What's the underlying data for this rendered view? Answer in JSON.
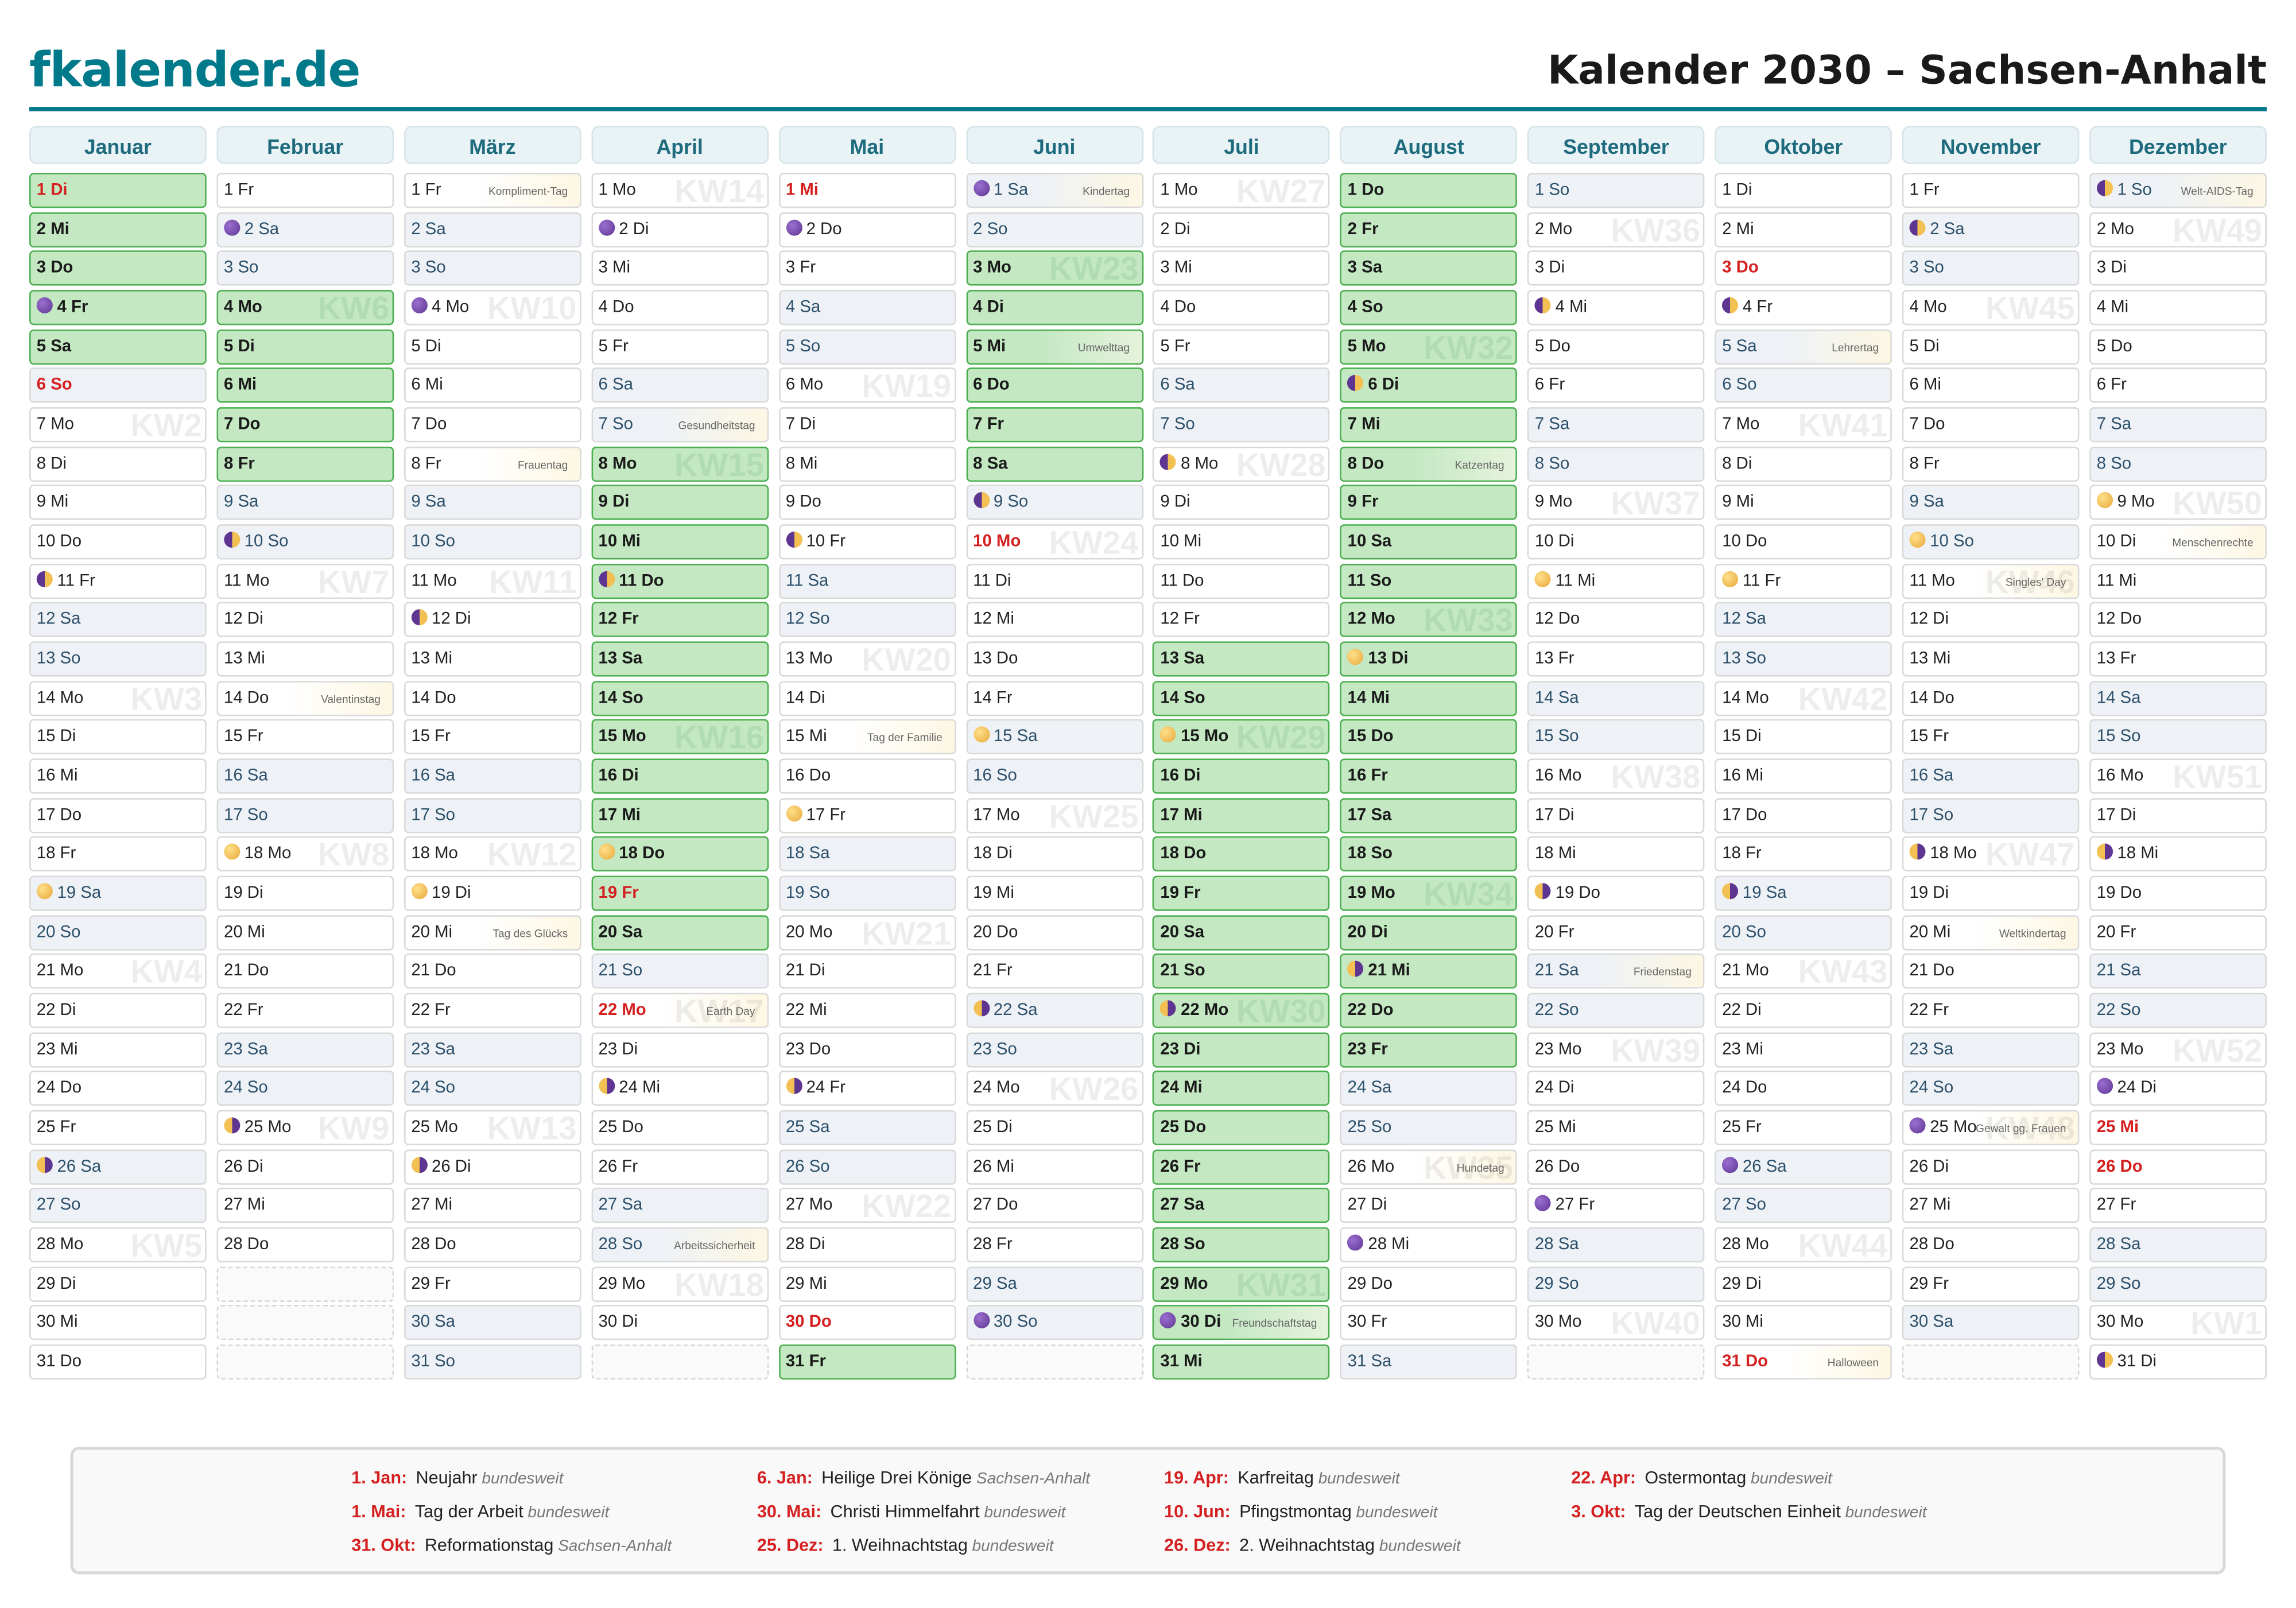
{
  "header": {
    "logo": "fkalender.de",
    "title": "Kalender 2030 – Sachsen-Anhalt"
  },
  "colors": {
    "brand": "#007a8a",
    "vacation": "#c3e8c2",
    "holiday": "#d42020",
    "weekend": "#eef2f6"
  },
  "months": [
    {
      "name": "Januar",
      "days": [
        "1 Di",
        "2 Mi",
        "3 Do",
        "4 Fr",
        "5 Sa",
        "6 So",
        "7 Mo",
        "8 Di",
        "9 Mi",
        "10 Do",
        "11 Fr",
        "12 Sa",
        "13 So",
        "14 Mo",
        "15 Di",
        "16 Mi",
        "17 Do",
        "18 Fr",
        "19 Sa",
        "20 So",
        "21 Mo",
        "22 Di",
        "23 Mi",
        "24 Do",
        "25 Fr",
        "26 Sa",
        "27 So",
        "28 Mo",
        "29 Di",
        "30 Mi",
        "31 Do"
      ],
      "vacation": [
        [
          1,
          5
        ]
      ],
      "holidays": [
        1,
        6
      ],
      "moons": {
        "4": "new",
        "11": "first",
        "19": "full",
        "26": "last"
      },
      "events": {},
      "kw": {
        "7": "KW2",
        "14": "KW3",
        "21": "KW4",
        "28": "KW5"
      }
    },
    {
      "name": "Februar",
      "days": [
        "1 Fr",
        "2 Sa",
        "3 So",
        "4 Mo",
        "5 Di",
        "6 Mi",
        "7 Do",
        "8 Fr",
        "9 Sa",
        "10 So",
        "11 Mo",
        "12 Di",
        "13 Mi",
        "14 Do",
        "15 Fr",
        "16 Sa",
        "17 So",
        "18 Mo",
        "19 Di",
        "20 Mi",
        "21 Do",
        "22 Fr",
        "23 Sa",
        "24 So",
        "25 Mo",
        "26 Di",
        "27 Mi",
        "28 Do"
      ],
      "vacation": [
        [
          4,
          8
        ]
      ],
      "holidays": [],
      "moons": {
        "2": "new",
        "10": "first",
        "18": "full",
        "25": "last"
      },
      "events": {
        "14": "Valentinstag"
      },
      "kw": {
        "4": "KW6",
        "11": "KW7",
        "18": "KW8",
        "25": "KW9"
      }
    },
    {
      "name": "März",
      "days": [
        "1 Fr",
        "2 Sa",
        "3 So",
        "4 Mo",
        "5 Di",
        "6 Mi",
        "7 Do",
        "8 Fr",
        "9 Sa",
        "10 So",
        "11 Mo",
        "12 Di",
        "13 Mi",
        "14 Do",
        "15 Fr",
        "16 Sa",
        "17 So",
        "18 Mo",
        "19 Di",
        "20 Mi",
        "21 Do",
        "22 Fr",
        "23 Sa",
        "24 So",
        "25 Mo",
        "26 Di",
        "27 Mi",
        "28 Do",
        "29 Fr",
        "30 Sa",
        "31 So"
      ],
      "vacation": [],
      "holidays": [],
      "moons": {
        "4": "new",
        "12": "first",
        "19": "full",
        "26": "last"
      },
      "events": {
        "1": "Kompliment-Tag",
        "8": "Frauentag",
        "20": "Tag des Glücks"
      },
      "kw": {
        "4": "KW10",
        "11": "KW11",
        "18": "KW12",
        "25": "KW13"
      }
    },
    {
      "name": "April",
      "days": [
        "1 Mo",
        "2 Di",
        "3 Mi",
        "4 Do",
        "5 Fr",
        "6 Sa",
        "7 So",
        "8 Mo",
        "9 Di",
        "10 Mi",
        "11 Do",
        "12 Fr",
        "13 Sa",
        "14 So",
        "15 Mo",
        "16 Di",
        "17 Mi",
        "18 Do",
        "19 Fr",
        "20 Sa",
        "21 So",
        "22 Mo",
        "23 Di",
        "24 Mi",
        "25 Do",
        "26 Fr",
        "27 Sa",
        "28 So",
        "29 Mo",
        "30 Di"
      ],
      "vacation": [
        [
          8,
          20
        ]
      ],
      "holidays": [
        19,
        22
      ],
      "moons": {
        "2": "new",
        "11": "first",
        "18": "full",
        "24": "last"
      },
      "events": {
        "7": "Gesundheitstag",
        "22": "Earth Day",
        "28": "Arbeitssicherheit"
      },
      "kw": {
        "1": "KW14",
        "8": "KW15",
        "15": "KW16",
        "22": "KW17",
        "29": "KW18"
      }
    },
    {
      "name": "Mai",
      "days": [
        "1 Mi",
        "2 Do",
        "3 Fr",
        "4 Sa",
        "5 So",
        "6 Mo",
        "7 Di",
        "8 Mi",
        "9 Do",
        "10 Fr",
        "11 Sa",
        "12 So",
        "13 Mo",
        "14 Di",
        "15 Mi",
        "16 Do",
        "17 Fr",
        "18 Sa",
        "19 So",
        "20 Mo",
        "21 Di",
        "22 Mi",
        "23 Do",
        "24 Fr",
        "25 Sa",
        "26 So",
        "27 Mo",
        "28 Di",
        "29 Mi",
        "30 Do",
        "31 Fr"
      ],
      "vacation": [
        [
          31,
          31
        ]
      ],
      "holidays": [
        1,
        30
      ],
      "moons": {
        "2": "new",
        "10": "first",
        "17": "full",
        "24": "last"
      },
      "events": {
        "15": "Tag der Familie"
      },
      "kw": {
        "6": "KW19",
        "13": "KW20",
        "20": "KW21",
        "27": "KW22"
      }
    },
    {
      "name": "Juni",
      "days": [
        "1 Sa",
        "2 So",
        "3 Mo",
        "4 Di",
        "5 Mi",
        "6 Do",
        "7 Fr",
        "8 Sa",
        "9 So",
        "10 Mo",
        "11 Di",
        "12 Mi",
        "13 Do",
        "14 Fr",
        "15 Sa",
        "16 So",
        "17 Mo",
        "18 Di",
        "19 Mi",
        "20 Do",
        "21 Fr",
        "22 Sa",
        "23 So",
        "24 Mo",
        "25 Di",
        "26 Mi",
        "27 Do",
        "28 Fr",
        "29 Sa",
        "30 So"
      ],
      "vacation": [
        [
          3,
          8
        ]
      ],
      "holidays": [
        10
      ],
      "moons": {
        "1": "new",
        "9": "first",
        "15": "full",
        "22": "last",
        "30": "new"
      },
      "events": {
        "1": "Kindertag",
        "5": "Umwelttag"
      },
      "kw": {
        "3": "KW23",
        "10": "KW24",
        "17": "KW25",
        "24": "KW26"
      }
    },
    {
      "name": "Juli",
      "days": [
        "1 Mo",
        "2 Di",
        "3 Mi",
        "4 Do",
        "5 Fr",
        "6 Sa",
        "7 So",
        "8 Mo",
        "9 Di",
        "10 Mi",
        "11 Do",
        "12 Fr",
        "13 Sa",
        "14 So",
        "15 Mo",
        "16 Di",
        "17 Mi",
        "18 Do",
        "19 Fr",
        "20 Sa",
        "21 So",
        "22 Mo",
        "23 Di",
        "24 Mi",
        "25 Do",
        "26 Fr",
        "27 Sa",
        "28 So",
        "29 Mo",
        "30 Di",
        "31 Mi"
      ],
      "vacation": [
        [
          13,
          31
        ]
      ],
      "holidays": [],
      "moons": {
        "8": "first",
        "15": "full",
        "22": "last",
        "30": "new"
      },
      "events": {
        "30": "Freundschaftstag"
      },
      "kw": {
        "1": "KW27",
        "8": "KW28",
        "15": "KW29",
        "22": "KW30",
        "29": "KW31"
      }
    },
    {
      "name": "August",
      "days": [
        "1 Do",
        "2 Fr",
        "3 Sa",
        "4 So",
        "5 Mo",
        "6 Di",
        "7 Mi",
        "8 Do",
        "9 Fr",
        "10 Sa",
        "11 So",
        "12 Mo",
        "13 Di",
        "14 Mi",
        "15 Do",
        "16 Fr",
        "17 Sa",
        "18 So",
        "19 Mo",
        "20 Di",
        "21 Mi",
        "22 Do",
        "23 Fr",
        "24 Sa",
        "25 So",
        "26 Mo",
        "27 Di",
        "28 Mi",
        "29 Do",
        "30 Fr",
        "31 Sa"
      ],
      "vacation": [
        [
          1,
          23
        ]
      ],
      "holidays": [],
      "moons": {
        "6": "first",
        "13": "full",
        "21": "last",
        "28": "new"
      },
      "events": {
        "8": "Katzentag",
        "26": "Hundetag"
      },
      "kw": {
        "5": "KW32",
        "12": "KW33",
        "19": "KW34",
        "26": "KW35"
      }
    },
    {
      "name": "September",
      "days": [
        "1 So",
        "2 Mo",
        "3 Di",
        "4 Mi",
        "5 Do",
        "6 Fr",
        "7 Sa",
        "8 So",
        "9 Mo",
        "10 Di",
        "11 Mi",
        "12 Do",
        "13 Fr",
        "14 Sa",
        "15 So",
        "16 Mo",
        "17 Di",
        "18 Mi",
        "19 Do",
        "20 Fr",
        "21 Sa",
        "22 So",
        "23 Mo",
        "24 Di",
        "25 Mi",
        "26 Do",
        "27 Fr",
        "28 Sa",
        "29 So",
        "30 Mo"
      ],
      "vacation": [],
      "holidays": [],
      "moons": {
        "4": "first",
        "11": "full",
        "19": "last",
        "27": "new"
      },
      "events": {
        "21": "Friedenstag"
      },
      "kw": {
        "2": "KW36",
        "9": "KW37",
        "16": "KW38",
        "23": "KW39",
        "30": "KW40"
      }
    },
    {
      "name": "Oktober",
      "days": [
        "1 Di",
        "2 Mi",
        "3 Do",
        "4 Fr",
        "5 Sa",
        "6 So",
        "7 Mo",
        "8 Di",
        "9 Mi",
        "10 Do",
        "11 Fr",
        "12 Sa",
        "13 So",
        "14 Mo",
        "15 Di",
        "16 Mi",
        "17 Do",
        "18 Fr",
        "19 Sa",
        "20 So",
        "21 Mo",
        "22 Di",
        "23 Mi",
        "24 Do",
        "25 Fr",
        "26 Sa",
        "27 So",
        "28 Mo",
        "29 Di",
        "30 Mi",
        "31 Do"
      ],
      "vacation": [],
      "holidays": [
        3,
        31
      ],
      "moons": {
        "4": "first",
        "11": "full",
        "19": "last",
        "26": "new"
      },
      "events": {
        "5": "Lehrertag",
        "31": "Halloween"
      },
      "kw": {
        "7": "KW41",
        "14": "KW42",
        "21": "KW43",
        "28": "KW44"
      }
    },
    {
      "name": "November",
      "days": [
        "1 Fr",
        "2 Sa",
        "3 So",
        "4 Mo",
        "5 Di",
        "6 Mi",
        "7 Do",
        "8 Fr",
        "9 Sa",
        "10 So",
        "11 Mo",
        "12 Di",
        "13 Mi",
        "14 Do",
        "15 Fr",
        "16 Sa",
        "17 So",
        "18 Mo",
        "19 Di",
        "20 Mi",
        "21 Do",
        "22 Fr",
        "23 Sa",
        "24 So",
        "25 Mo",
        "26 Di",
        "27 Mi",
        "28 Do",
        "29 Fr",
        "30 Sa"
      ],
      "vacation": [],
      "holidays": [],
      "moons": {
        "2": "first",
        "10": "full",
        "18": "last",
        "25": "new"
      },
      "events": {
        "11": "Singles' Day",
        "20": "Weltkindertag",
        "25": "Gewalt gg. Frauen"
      },
      "kw": {
        "4": "KW45",
        "11": "KW46",
        "18": "KW47",
        "25": "KW48"
      }
    },
    {
      "name": "Dezember",
      "days": [
        "1 So",
        "2 Mo",
        "3 Di",
        "4 Mi",
        "5 Do",
        "6 Fr",
        "7 Sa",
        "8 So",
        "9 Mo",
        "10 Di",
        "11 Mi",
        "12 Do",
        "13 Fr",
        "14 Sa",
        "15 So",
        "16 Mo",
        "17 Di",
        "18 Mi",
        "19 Do",
        "20 Fr",
        "21 Sa",
        "22 So",
        "23 Mo",
        "24 Di",
        "25 Mi",
        "26 Do",
        "27 Fr",
        "28 Sa",
        "29 So",
        "30 Mo",
        "31 Di"
      ],
      "vacation": [],
      "holidays": [
        25,
        26
      ],
      "moons": {
        "1": "first",
        "9": "full",
        "18": "last",
        "24": "new",
        "31": "first"
      },
      "events": {
        "1": "Welt-AIDS-Tag",
        "10": "Menschenrechte"
      },
      "kw": {
        "2": "KW49",
        "9": "KW50",
        "16": "KW51",
        "23": "KW52",
        "30": "KW1"
      }
    }
  ],
  "legend": [
    {
      "date": "1. Jan:",
      "name": "Neujahr",
      "scope": "bundesweit"
    },
    {
      "date": "6. Jan:",
      "name": "Heilige Drei Könige",
      "scope": "Sachsen-Anhalt"
    },
    {
      "date": "19. Apr:",
      "name": "Karfreitag",
      "scope": "bundesweit"
    },
    {
      "date": "22. Apr:",
      "name": "Ostermontag",
      "scope": "bundesweit"
    },
    {
      "date": "1. Mai:",
      "name": "Tag der Arbeit",
      "scope": "bundesweit"
    },
    {
      "date": "30. Mai:",
      "name": "Christi Himmelfahrt",
      "scope": "bundesweit"
    },
    {
      "date": "10. Jun:",
      "name": "Pfingstmontag",
      "scope": "bundesweit"
    },
    {
      "date": "3. Okt:",
      "name": "Tag der Deutschen Einheit",
      "scope": "bundesweit"
    },
    {
      "date": "31. Okt:",
      "name": "Reformationstag",
      "scope": "Sachsen-Anhalt"
    },
    {
      "date": "25. Dez:",
      "name": "1. Weihnachtstag",
      "scope": "bundesweit"
    },
    {
      "date": "26. Dez:",
      "name": "2. Weihnachtstag",
      "scope": "bundesweit"
    }
  ]
}
